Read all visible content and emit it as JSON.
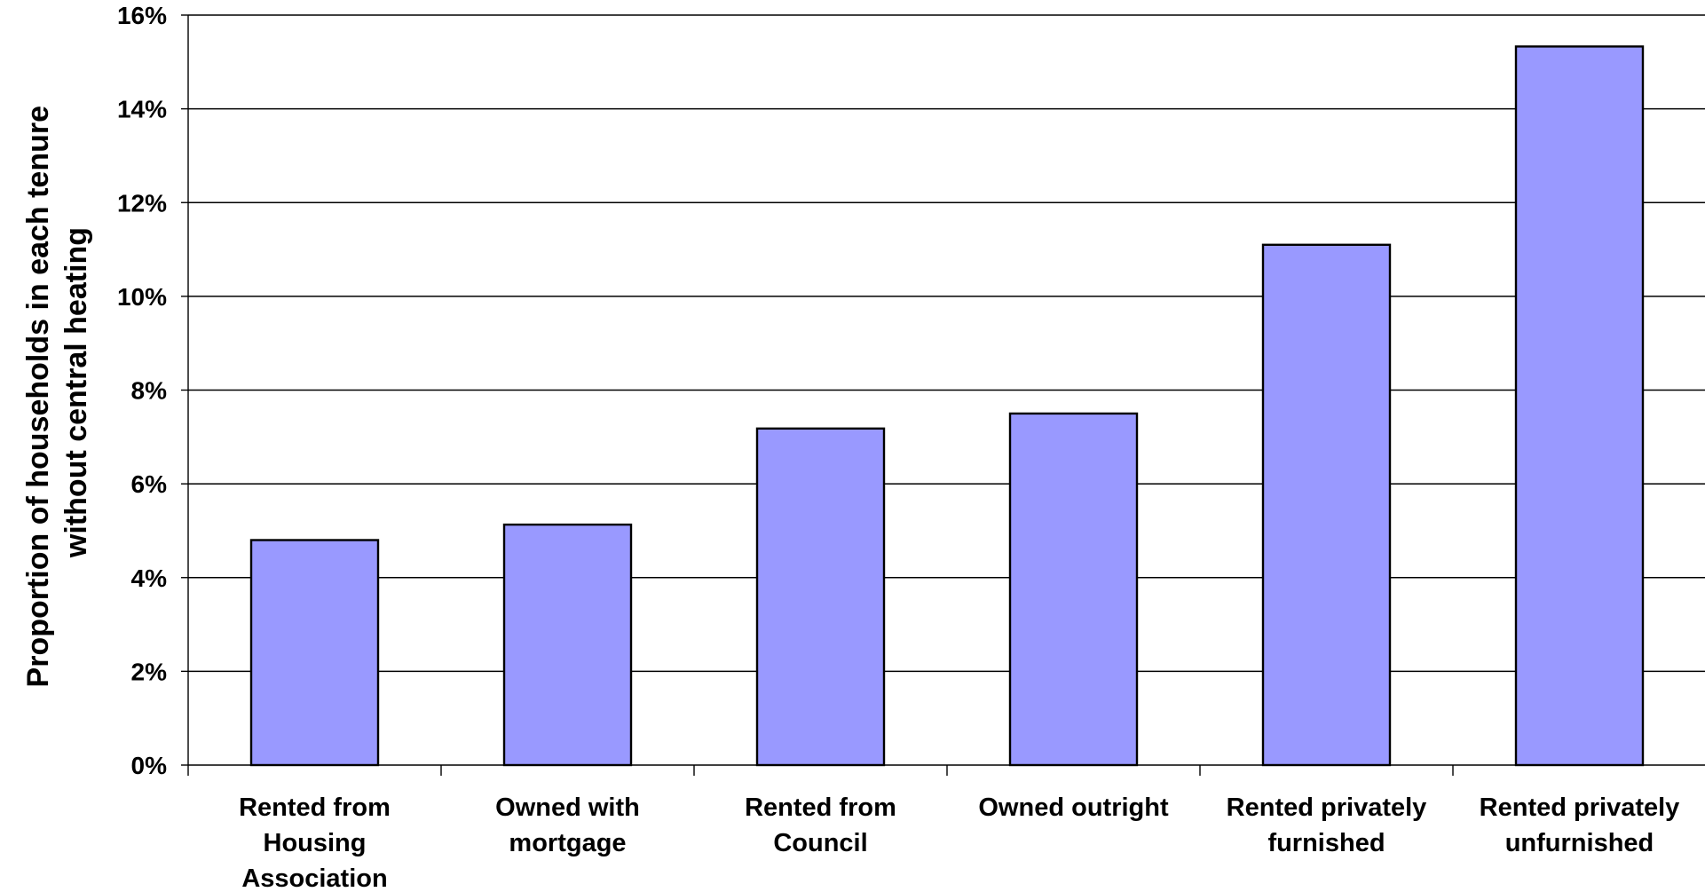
{
  "chart_data": {
    "type": "bar",
    "title": "",
    "xlabel": "",
    "ylabel": {
      "line1": "Proportion of households in each tenure",
      "line2": "without central heating"
    },
    "categories": [
      [
        "Rented from",
        "Housing",
        "Association"
      ],
      [
        "Owned with",
        "mortgage"
      ],
      [
        "Rented from",
        "Council"
      ],
      [
        "Owned outright"
      ],
      [
        "Rented privately",
        "furnished"
      ],
      [
        "Rented privately",
        "unfurnished"
      ]
    ],
    "values": [
      4.8,
      5.13,
      7.18,
      7.5,
      11.1,
      15.33
    ],
    "ylim": [
      0,
      16
    ],
    "y_ticks": [
      0,
      2,
      4,
      6,
      8,
      10,
      12,
      14,
      16
    ],
    "y_tick_labels": [
      "0%",
      "2%",
      "4%",
      "6%",
      "8%",
      "10%",
      "12%",
      "14%",
      "16%"
    ],
    "grid": true,
    "legend": "none",
    "bar_color": "#9999ff",
    "edge_color": "#000000"
  }
}
